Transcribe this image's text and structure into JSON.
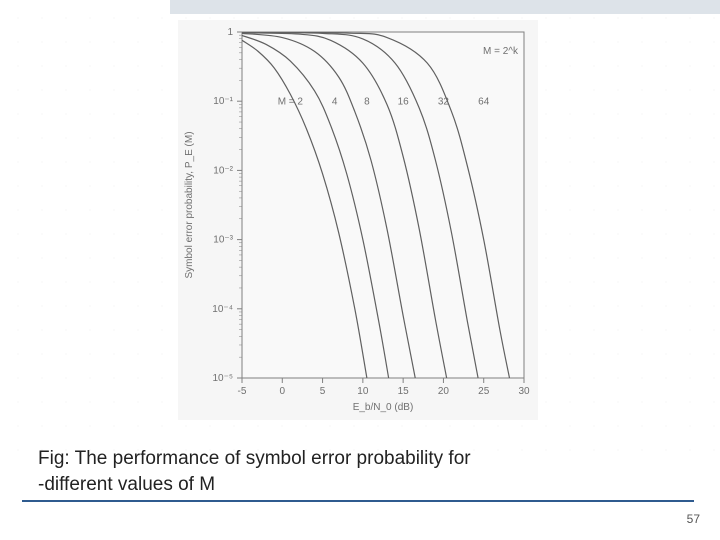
{
  "slide": {
    "caption_line1": "Fig: The performance of symbol error probability for",
    "caption_line2": "-different values of M",
    "page_number": "57",
    "topbar_color": "#dde3e9",
    "underline_color": "#2f5b8f"
  },
  "chart": {
    "type": "line",
    "background_color": "#f6f6f6",
    "plot_background": "#f9f9f9",
    "frame_color": "#808080",
    "curve_color": "#606060",
    "grid_color": "#c0c0c0",
    "text_color": "#707070",
    "font_family": "sans-serif",
    "label_fontsize": 10,
    "tick_fontsize": 10,
    "line_width": 1.2,
    "xlabel": "E_b/N_0  (dB)",
    "ylabel": "Symbol error probability, P_E (M)",
    "annotation_right": "M = 2^k",
    "xlim": [
      -5,
      30
    ],
    "xticks": [
      -5,
      0,
      5,
      10,
      15,
      20,
      25,
      30
    ],
    "ylim_exp": [
      -5,
      0
    ],
    "ytick_exp": [
      -5,
      -4,
      -3,
      -2,
      -1,
      0
    ],
    "ytick_labels": [
      "10⁻⁵",
      "10⁻⁴",
      "10⁻³",
      "10⁻²",
      "10⁻¹",
      "1"
    ],
    "series": [
      {
        "label": "M = 2",
        "label_x": 1,
        "label_y_exp": -1.05,
        "points": [
          [
            -5,
            -0.12
          ],
          [
            -3,
            -0.28
          ],
          [
            -1,
            -0.52
          ],
          [
            1,
            -0.9
          ],
          [
            3,
            -1.4
          ],
          [
            5,
            -2.05
          ],
          [
            7,
            -2.9
          ],
          [
            9,
            -4.0
          ],
          [
            10.5,
            -5
          ]
        ]
      },
      {
        "label": "4",
        "label_x": 6.5,
        "label_y_exp": -1.05,
        "points": [
          [
            -5,
            -0.05
          ],
          [
            -2,
            -0.18
          ],
          [
            1,
            -0.42
          ],
          [
            4,
            -0.85
          ],
          [
            6,
            -1.35
          ],
          [
            8,
            -2.05
          ],
          [
            10,
            -3.0
          ],
          [
            12,
            -4.2
          ],
          [
            13.2,
            -5
          ]
        ]
      },
      {
        "label": "8",
        "label_x": 10.5,
        "label_y_exp": -1.05,
        "points": [
          [
            -5,
            -0.02
          ],
          [
            0,
            -0.08
          ],
          [
            4,
            -0.28
          ],
          [
            7,
            -0.65
          ],
          [
            9,
            -1.15
          ],
          [
            11,
            -1.85
          ],
          [
            13,
            -2.85
          ],
          [
            15,
            -4.1
          ],
          [
            16.5,
            -5
          ]
        ]
      },
      {
        "label": "16",
        "label_x": 15,
        "label_y_exp": -1.05,
        "points": [
          [
            -5,
            -0.01
          ],
          [
            2,
            -0.03
          ],
          [
            6,
            -0.12
          ],
          [
            10,
            -0.45
          ],
          [
            13,
            -1.05
          ],
          [
            15,
            -1.8
          ],
          [
            17,
            -2.85
          ],
          [
            19,
            -4.15
          ],
          [
            20.4,
            -5
          ]
        ]
      },
      {
        "label": "32",
        "label_x": 20,
        "label_y_exp": -1.05,
        "points": [
          [
            -5,
            -0.005
          ],
          [
            5,
            -0.02
          ],
          [
            10,
            -0.1
          ],
          [
            14,
            -0.45
          ],
          [
            17,
            -1.1
          ],
          [
            19,
            -1.85
          ],
          [
            21,
            -2.9
          ],
          [
            23,
            -4.2
          ],
          [
            24.3,
            -5
          ]
        ]
      },
      {
        "label": "64",
        "label_x": 25,
        "label_y_exp": -1.05,
        "points": [
          [
            -5,
            -0.003
          ],
          [
            8,
            -0.015
          ],
          [
            13,
            -0.08
          ],
          [
            18,
            -0.45
          ],
          [
            21,
            -1.15
          ],
          [
            23,
            -1.95
          ],
          [
            25,
            -3.0
          ],
          [
            27,
            -4.3
          ],
          [
            28.2,
            -5
          ]
        ]
      }
    ]
  }
}
